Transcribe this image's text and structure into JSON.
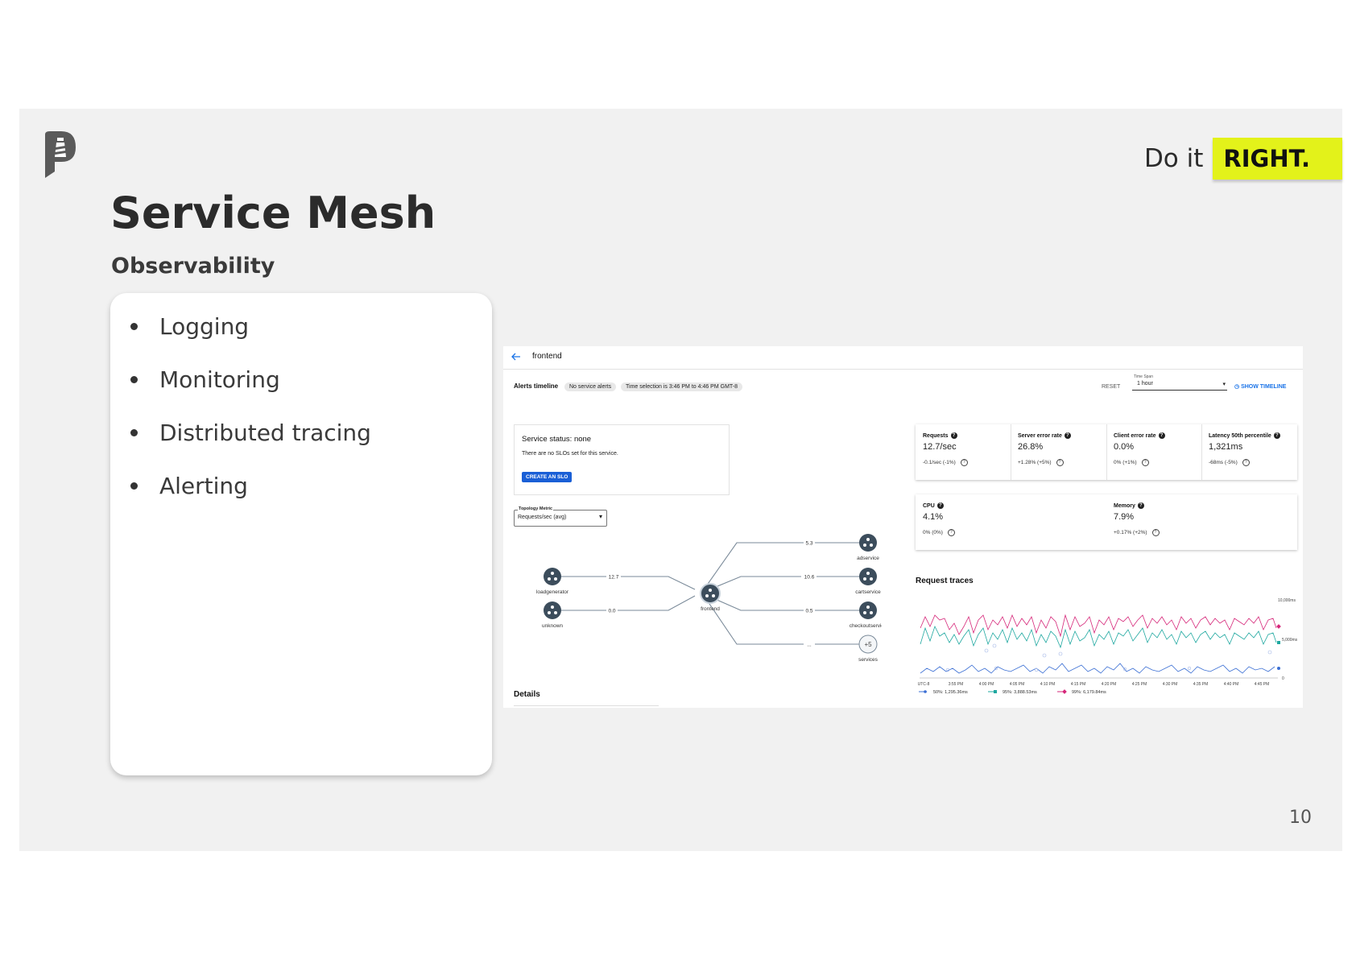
{
  "slide": {
    "tagline_prefix": "Do it",
    "tagline_highlight": "RIGHT.",
    "title": "Service Mesh",
    "subtitle": "Observability",
    "bullets": [
      "Logging",
      "Monitoring",
      "Distributed tracing",
      "Alerting"
    ],
    "page_number": "10",
    "colors": {
      "background": "#f1f1f1",
      "highlight": "#e3f21a",
      "text": "#2b2b2b"
    }
  },
  "screenshot": {
    "header": {
      "back_icon": "arrow-left-icon",
      "service_name": "frontend"
    },
    "alerts": {
      "label": "Alerts timeline",
      "no_alerts_pill": "No service alerts",
      "time_selection_pill": "Time selection is 3:46 PM to 4:46 PM GMT-8",
      "reset_label": "RESET",
      "time_span_label": "Time Span",
      "time_span_value": "1 hour",
      "show_timeline_label": "SHOW TIMELINE"
    },
    "service_status": {
      "title": "Service status: none",
      "text": "There are no SLOs set for this service.",
      "button": "CREATE AN SLO"
    },
    "topology": {
      "metric_label": "Topology Metric",
      "metric_value": "Requests/sec (avg)",
      "nodes": {
        "loadgenerator": "loadgenerator",
        "unknown": "unknown",
        "frontend": "frontend",
        "adservice": "adservice",
        "cartservice": "cartservice",
        "checkoutservice": "checkoutservice",
        "more": "+5",
        "more_label": "services"
      },
      "edges": {
        "loadgen_frontend": "12.7",
        "unknown_frontend": "0.0",
        "frontend_adservice": "5.3",
        "frontend_cartservice": "10.6",
        "frontend_checkout": "0.5",
        "frontend_more": "..."
      }
    },
    "details_label": "Details",
    "metrics_top": [
      {
        "label": "Requests",
        "value": "12.7/sec",
        "delta": "-0.1/sec (-1%)"
      },
      {
        "label": "Server error rate",
        "value": "26.8%",
        "delta": "+1.28% (+5%)"
      },
      {
        "label": "Client error rate",
        "value": "0.0%",
        "delta": "0% (+1%)"
      },
      {
        "label": "Latency 50th percentile",
        "value": "1,321ms",
        "delta": "-68ms (-5%)"
      }
    ],
    "metrics_bottom": [
      {
        "label": "CPU",
        "value": "4.1%",
        "delta": "0% (0%)"
      },
      {
        "label": "Memory",
        "value": "7.9%",
        "delta": "+0.17% (+2%)"
      }
    ],
    "request_traces": {
      "title": "Request traces",
      "y_max_label": "10,000ms",
      "y_mid_label": "5,000ms",
      "y_zero_label": "0",
      "x_labels": [
        "UTC-8",
        "3:55 PM",
        "4:00 PM",
        "4:05 PM",
        "4:10 PM",
        "4:15 PM",
        "4:20 PM",
        "4:25 PM",
        "4:30 PM",
        "4:35 PM",
        "4:40 PM",
        "4:45 PM"
      ],
      "legend": [
        {
          "label": "50%: 1,295.36ms",
          "color": "#3b6fd4"
        },
        {
          "label": "95%: 3,888.53ms",
          "color": "#1fa8a0"
        },
        {
          "label": "99%: 6,179.84ms",
          "color": "#d6287a"
        }
      ]
    }
  }
}
